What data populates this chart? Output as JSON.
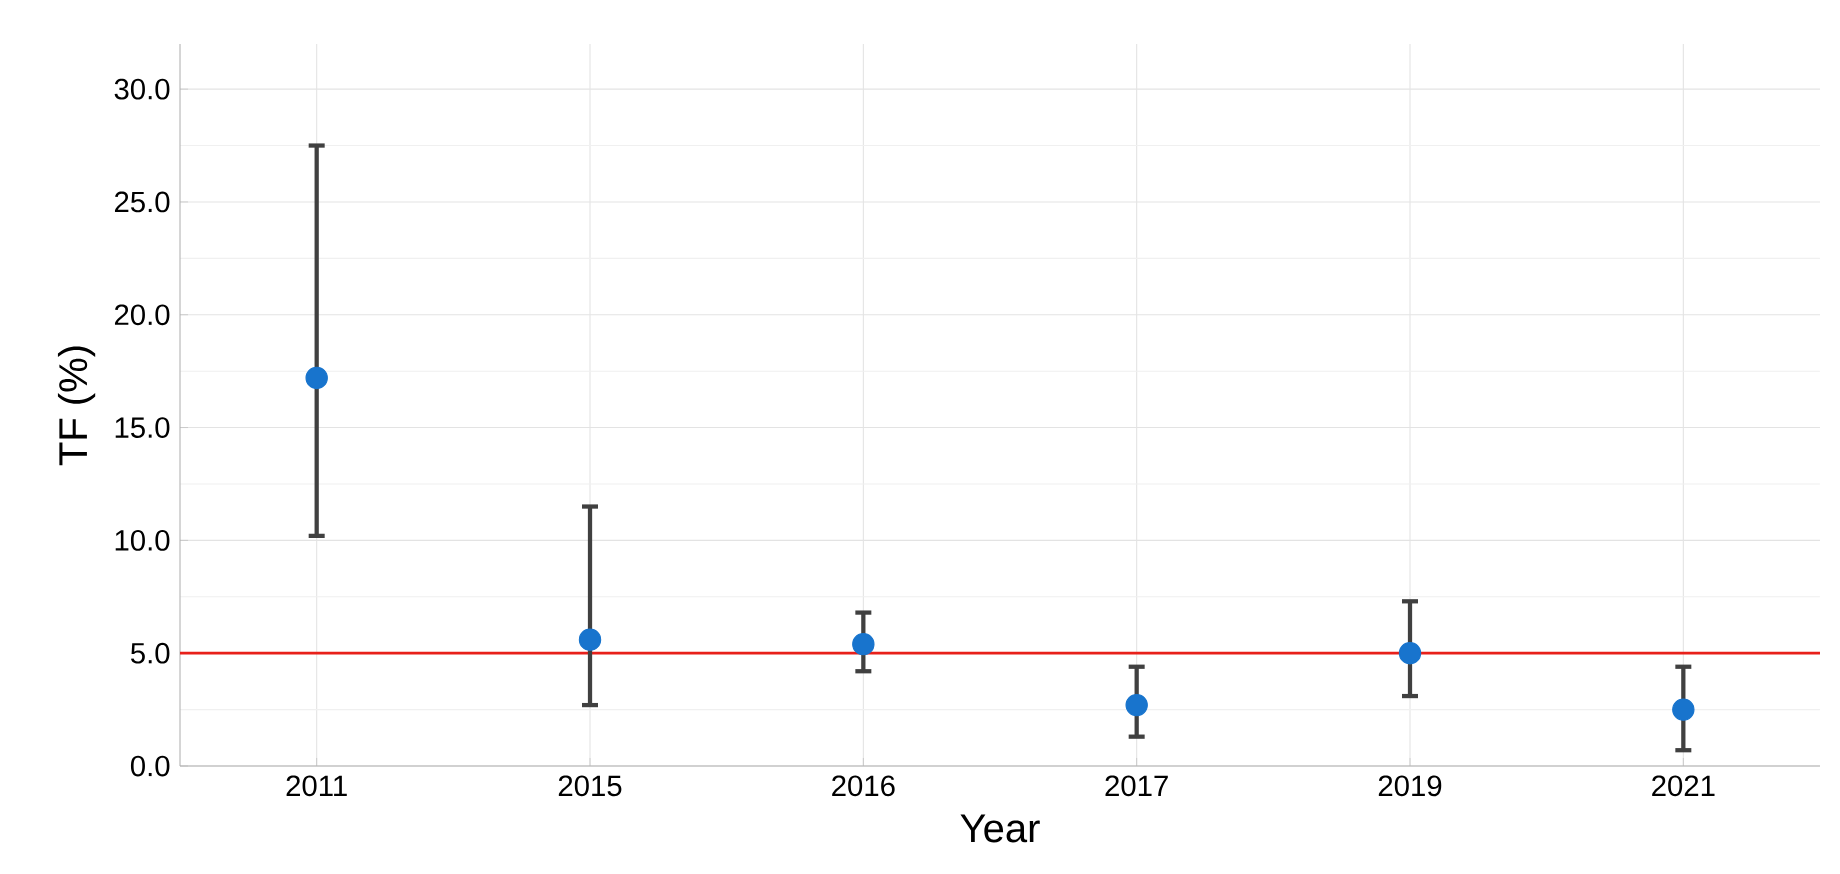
{
  "chart_data": {
    "type": "scatter",
    "xlabel": "Year",
    "ylabel": "TF (%)",
    "categories": [
      "2011",
      "2015",
      "2016",
      "2017",
      "2019",
      "2021"
    ],
    "values": [
      17.2,
      5.6,
      5.4,
      2.7,
      5.0,
      2.5
    ],
    "errors": [
      [
        10.2,
        27.5
      ],
      [
        2.7,
        11.5
      ],
      [
        4.2,
        6.8
      ],
      [
        1.3,
        4.4
      ],
      [
        3.1,
        7.3
      ],
      [
        0.7,
        4.4
      ]
    ],
    "color": "#1874cd",
    "marker": "circle",
    "ylim": [
      0,
      32
    ],
    "yticks": [
      {
        "value": 0,
        "label": "0.0"
      },
      {
        "value": 5,
        "label": "5.0"
      },
      {
        "value": 10,
        "label": "10.0"
      },
      {
        "value": 15,
        "label": "15.0"
      },
      {
        "value": 20,
        "label": "20.0"
      },
      {
        "value": 25,
        "label": "25.0"
      },
      {
        "value": 30,
        "label": "30.0"
      }
    ],
    "ref_lines": [
      {
        "axis": "y",
        "value": 5.0,
        "color": "#e8201a"
      }
    ],
    "grid": true
  }
}
